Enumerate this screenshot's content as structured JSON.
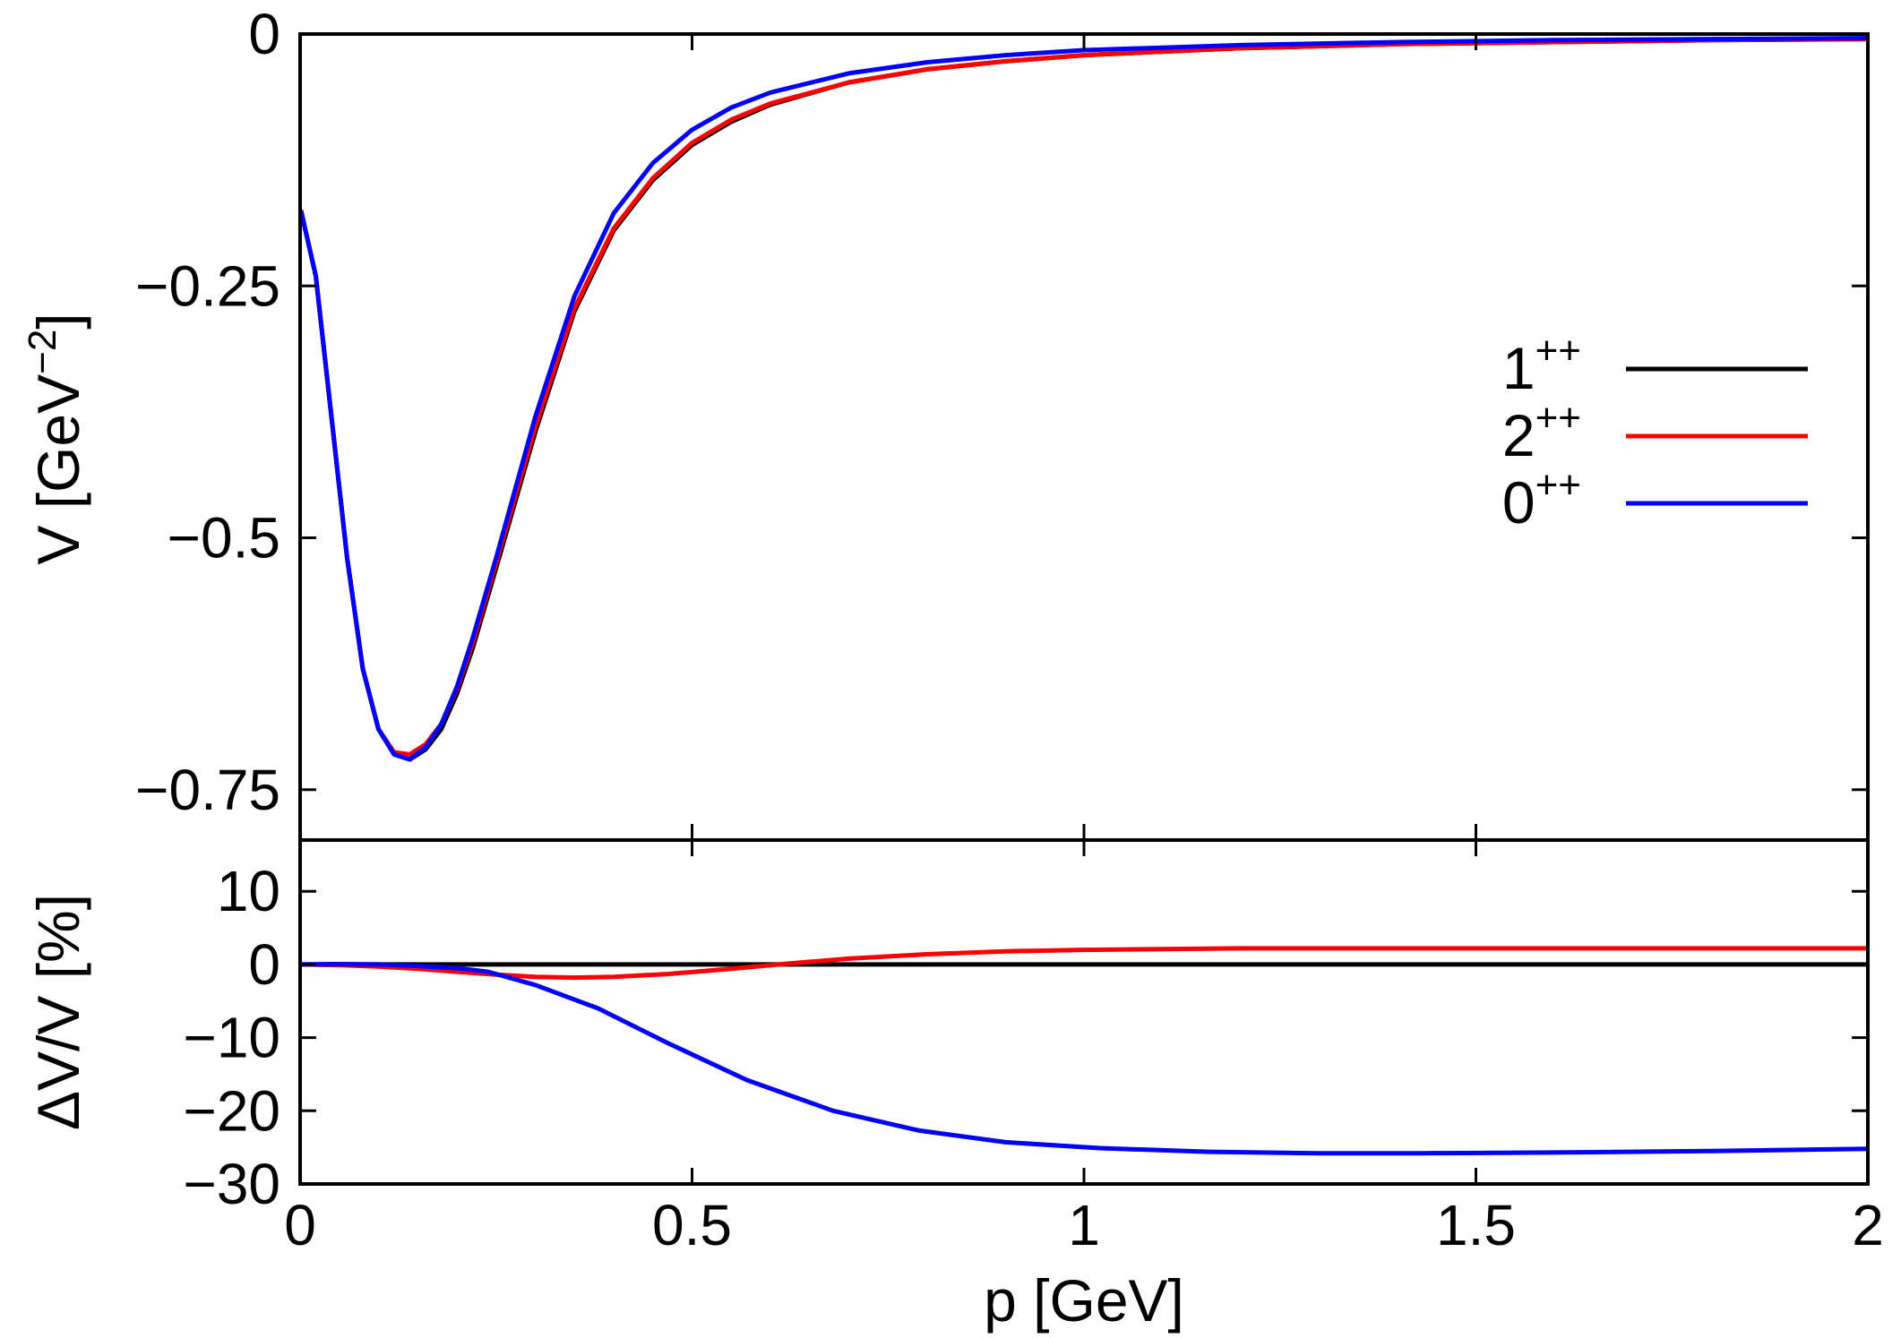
{
  "chart_data": {
    "type": "line",
    "shared_x_label": "p [GeV]",
    "x_tick_labels": [
      "0",
      "0.5",
      "1",
      "1.5",
      "2"
    ],
    "xlim": [
      0,
      2
    ],
    "panels": [
      {
        "name": "potential",
        "ylabel_main": "V [GeV",
        "ylabel_exp": "−2",
        "ylabel_close": "]",
        "ylim": [
          -0.8,
          0
        ],
        "ticks": [
          0,
          -0.25,
          -0.5,
          -0.75
        ],
        "tick_labels": [
          "0",
          "−0.25",
          "−0.5",
          "−0.75"
        ],
        "series": [
          {
            "name": "1++",
            "color": "#000000",
            "x": [
              0.001,
              0.02,
              0.04,
              0.06,
              0.08,
              0.1,
              0.12,
              0.14,
              0.16,
              0.18,
              0.2,
              0.22,
              0.25,
              0.3,
              0.35,
              0.4,
              0.45,
              0.5,
              0.55,
              0.6,
              0.7,
              0.8,
              0.9,
              1.0,
              1.2,
              1.4,
              1.6,
              1.8,
              2.0
            ],
            "y": [
              -0.175,
              -0.24,
              -0.38,
              -0.52,
              -0.63,
              -0.69,
              -0.715,
              -0.72,
              -0.71,
              -0.69,
              -0.655,
              -0.61,
              -0.53,
              -0.395,
              -0.275,
              -0.195,
              -0.145,
              -0.11,
              -0.087,
              -0.07,
              -0.048,
              -0.035,
              -0.027,
              -0.021,
              -0.014,
              -0.01,
              -0.008,
              -0.006,
              -0.005
            ]
          },
          {
            "name": "2++",
            "color": "#ff0000",
            "x": [
              0.001,
              0.02,
              0.04,
              0.06,
              0.08,
              0.1,
              0.12,
              0.14,
              0.16,
              0.18,
              0.2,
              0.22,
              0.25,
              0.3,
              0.35,
              0.4,
              0.45,
              0.5,
              0.55,
              0.6,
              0.7,
              0.8,
              0.9,
              1.0,
              1.2,
              1.4,
              1.6,
              1.8,
              2.0
            ],
            "y": [
              -0.175,
              -0.24,
              -0.38,
              -0.52,
              -0.63,
              -0.69,
              -0.713,
              -0.715,
              -0.705,
              -0.685,
              -0.65,
              -0.605,
              -0.525,
              -0.39,
              -0.272,
              -0.193,
              -0.143,
              -0.108,
              -0.085,
              -0.069,
              -0.048,
              -0.035,
              -0.027,
              -0.021,
              -0.014,
              -0.01,
              -0.008,
              -0.006,
              -0.005
            ]
          },
          {
            "name": "0++",
            "color": "#0000ff",
            "x": [
              0.001,
              0.02,
              0.04,
              0.06,
              0.08,
              0.1,
              0.12,
              0.14,
              0.16,
              0.18,
              0.2,
              0.22,
              0.25,
              0.3,
              0.35,
              0.4,
              0.45,
              0.5,
              0.55,
              0.6,
              0.7,
              0.8,
              0.9,
              1.0,
              1.2,
              1.4,
              1.6,
              1.8,
              2.0
            ],
            "y": [
              -0.175,
              -0.24,
              -0.38,
              -0.52,
              -0.63,
              -0.69,
              -0.715,
              -0.72,
              -0.708,
              -0.685,
              -0.648,
              -0.6,
              -0.52,
              -0.38,
              -0.26,
              -0.178,
              -0.128,
              -0.095,
              -0.073,
              -0.058,
              -0.039,
              -0.028,
              -0.021,
              -0.016,
              -0.011,
              -0.008,
              -0.006,
              -0.005,
              -0.004
            ]
          }
        ],
        "legend": {
          "position": "right",
          "entries": [
            {
              "base": "1",
              "exp": "++",
              "color": "#000000"
            },
            {
              "base": "2",
              "exp": "++",
              "color": "#ff0000"
            },
            {
              "base": "0",
              "exp": "++",
              "color": "#0000ff"
            }
          ]
        }
      },
      {
        "name": "relative-difference",
        "ylabel": "ΔV/V [%]",
        "ylim": [
          -30,
          17
        ],
        "ticks": [
          10,
          0,
          -10,
          -20,
          -30
        ],
        "tick_labels": [
          "10",
          "0",
          "−10",
          "−20",
          "−30"
        ],
        "series": [
          {
            "name": "1++",
            "color": "#000000",
            "x": [
              0,
              2
            ],
            "y": [
              0,
              0
            ]
          },
          {
            "name": "2++",
            "color": "#ff0000",
            "x": [
              0,
              0.05,
              0.1,
              0.15,
              0.2,
              0.25,
              0.3,
              0.35,
              0.4,
              0.47,
              0.55,
              0.62,
              0.7,
              0.8,
              0.9,
              1.0,
              1.1,
              1.2,
              1.4,
              1.6,
              1.8,
              2.0
            ],
            "y": [
              0,
              -0.1,
              -0.3,
              -0.6,
              -1.0,
              -1.4,
              -1.7,
              -1.8,
              -1.7,
              -1.3,
              -0.6,
              0.1,
              0.8,
              1.4,
              1.8,
              2.0,
              2.1,
              2.2,
              2.2,
              2.2,
              2.2,
              2.2
            ]
          },
          {
            "name": "0++",
            "color": "#0000ff",
            "x": [
              0,
              0.05,
              0.1,
              0.15,
              0.2,
              0.24,
              0.3,
              0.38,
              0.47,
              0.57,
              0.68,
              0.79,
              0.9,
              1.02,
              1.16,
              1.3,
              1.42,
              1.6,
              1.8,
              2.0
            ],
            "y": [
              0,
              0.05,
              0,
              -0.2,
              -0.5,
              -1.0,
              -2.8,
              -6.0,
              -10.8,
              -15.8,
              -20.0,
              -22.7,
              -24.3,
              -25.1,
              -25.6,
              -25.8,
              -25.8,
              -25.7,
              -25.5,
              -25.2
            ]
          }
        ]
      }
    ]
  }
}
